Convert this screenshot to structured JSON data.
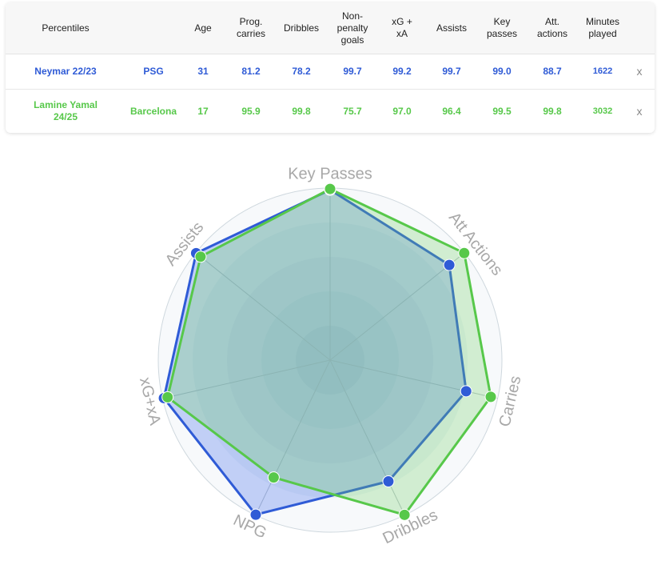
{
  "table": {
    "headers": {
      "percentiles": "Percentiles",
      "team": "",
      "age": "Age",
      "prog_carries": "Prog.\ncarries",
      "dribbles": "Dribbles",
      "npg": "Non-\npenalty\ngoals",
      "xg_xa": "xG +\nxA",
      "assists": "Assists",
      "key_passes": "Key\npasses",
      "att_actions": "Att.\nactions",
      "minutes": "Minutes\nplayed"
    },
    "rows": [
      {
        "player": "Neymar 22/23",
        "team": "PSG",
        "age": "31",
        "prog_carries": "81.2",
        "dribbles": "78.2",
        "npg": "99.7",
        "xg_xa": "99.2",
        "assists": "99.7",
        "key_passes": "99.0",
        "att_actions": "88.7",
        "minutes": "1622",
        "remove": "x"
      },
      {
        "player": "Lamine Yamal\n24/25",
        "team": "Barcelona",
        "age": "17",
        "prog_carries": "95.9",
        "dribbles": "99.8",
        "npg": "75.7",
        "xg_xa": "97.0",
        "assists": "96.4",
        "key_passes": "99.5",
        "att_actions": "99.8",
        "minutes": "3032",
        "remove": "x"
      }
    ]
  },
  "chart_data": {
    "type": "radar",
    "axes": [
      "Key Passes",
      "Att Actions",
      "Carries",
      "Dribbles",
      "NPG",
      "xG+xA",
      "Assists"
    ],
    "range": [
      0,
      100
    ],
    "series": [
      {
        "name": "Neymar 22/23",
        "color": "#2f5bd6",
        "fill": "rgba(70,110,235,0.30)",
        "values": [
          99.0,
          88.7,
          81.2,
          78.2,
          99.7,
          99.2,
          99.7
        ]
      },
      {
        "name": "Lamine Yamal 24/25",
        "color": "#57c84a",
        "fill": "rgba(110,210,100,0.28)",
        "values": [
          99.5,
          99.8,
          95.9,
          99.8,
          75.7,
          97.0,
          96.4
        ]
      }
    ]
  }
}
